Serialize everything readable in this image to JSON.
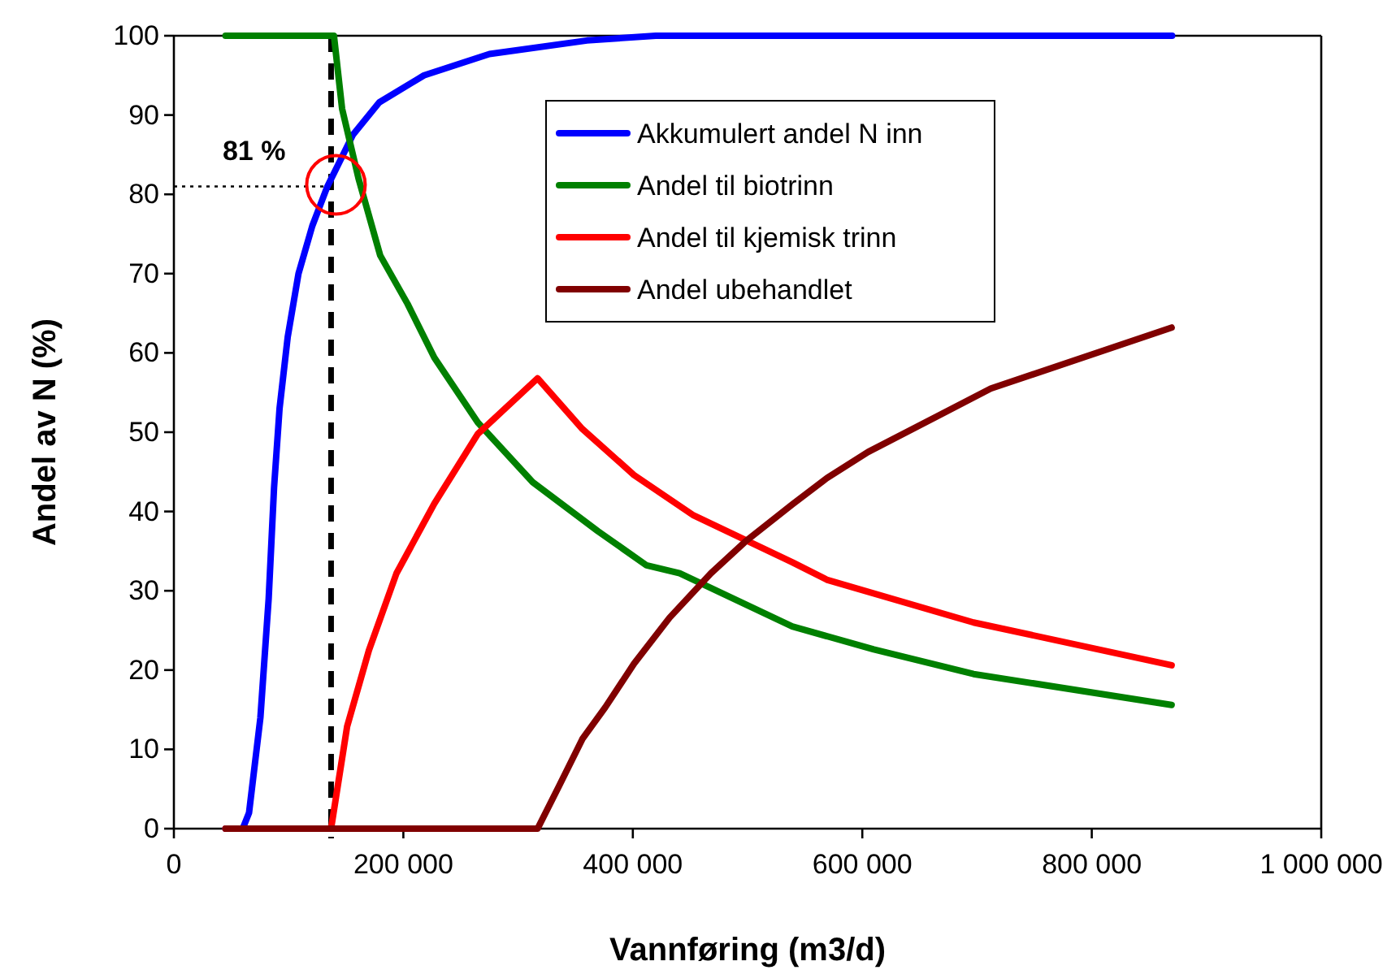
{
  "chart_data": {
    "type": "line",
    "xlabel": "Vannføring (m3/d)",
    "ylabel": "Andel av N (%)",
    "xlim": [
      0,
      1000000
    ],
    "xticks": [
      {
        "value": 0,
        "label": "0"
      },
      {
        "value": 200000,
        "label": "200 000"
      },
      {
        "value": 400000,
        "label": "400 000"
      },
      {
        "value": 600000,
        "label": "600 000"
      },
      {
        "value": 800000,
        "label": "800 000"
      },
      {
        "value": 1000000,
        "label": "1 000 000"
      }
    ],
    "ylim": [
      0,
      100
    ],
    "yticks": [
      0,
      10,
      20,
      30,
      40,
      50,
      60,
      70,
      80,
      90,
      100
    ],
    "grid": false,
    "legend": "top",
    "marker": "none",
    "line_style": "solid",
    "series": [
      {
        "name": "Akkumulert andel N inn",
        "color": "#0000ff",
        "x": [
          45000,
          60000,
          65500,
          75400,
          82600,
          87300,
          92100,
          99200,
          108600,
          120600,
          133800,
          156000,
          179000,
          218000,
          275000,
          360000,
          420000,
          870000
        ],
        "values": [
          0,
          0,
          2,
          14,
          29,
          43,
          53,
          62,
          70,
          76,
          81,
          87.5,
          91.6,
          95,
          97.7,
          99.4,
          100,
          100
        ]
      },
      {
        "name": "Andel til biotrinn",
        "color": "#008000",
        "x": [
          45000,
          139500,
          146600,
          160900,
          179800,
          203600,
          227000,
          265000,
          312700,
          369700,
          412000,
          440800,
          539000,
          610000,
          697000,
          869600
        ],
        "values": [
          100,
          100,
          90.8,
          82,
          72.3,
          66.2,
          59.4,
          51.2,
          43.7,
          37.5,
          33.2,
          32.2,
          25.5,
          22.6,
          19.5,
          15.6
        ]
      },
      {
        "name": "Andel til kjemisk trinn",
        "color": "#ff0000",
        "x": [
          45000,
          137000,
          151000,
          170000,
          194000,
          227000,
          265000,
          317000,
          356000,
          401000,
          453000,
          539000,
          569000,
          697000,
          869600
        ],
        "values": [
          0,
          0,
          12.9,
          22.5,
          32.2,
          41,
          49.8,
          56.8,
          50.4,
          44.6,
          39.5,
          33.6,
          31.4,
          26,
          20.6
        ]
      },
      {
        "name": "Andel ubehandlet",
        "color": "#800000",
        "x": [
          45000,
          317000,
          335800,
          356000,
          376000,
          401000,
          432000,
          468000,
          498000,
          539000,
          569000,
          605000,
          712000,
          869600
        ],
        "values": [
          0,
          0,
          5.4,
          11.3,
          15.3,
          20.8,
          26.6,
          32.2,
          36.2,
          40.9,
          44.2,
          47.5,
          55.5,
          63.2
        ]
      }
    ],
    "ref_lines": [
      {
        "axis": "x",
        "value": 137000,
        "color": "#000000",
        "line_style": "dashed"
      },
      {
        "axis": "y",
        "value": 81,
        "color": "#000000",
        "line_style": "dotted"
      }
    ],
    "annotations": [
      {
        "text": "81 %",
        "x": 137000,
        "y": 81
      }
    ]
  }
}
